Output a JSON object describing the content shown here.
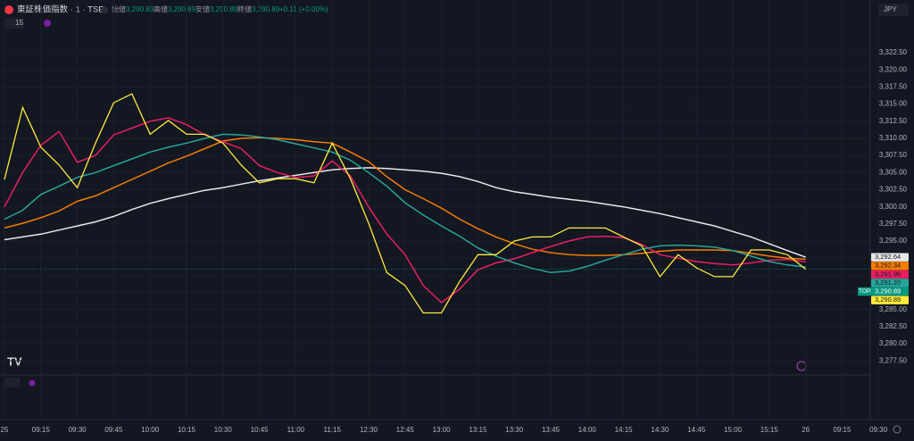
{
  "chart_data": {
    "type": "line",
    "title": "東証株価指数 · 1 · TSE",
    "ohlc": [
      [
        "始値",
        "3,290.89"
      ],
      [
        "高値",
        "3,290.89"
      ],
      [
        "安値",
        "3,290.89"
      ],
      [
        "終値",
        "3,290.89"
      ]
    ],
    "change": "+0.11 (+0.00%)",
    "interval": "15",
    "currency": "JPY",
    "categories": [
      "25",
      null,
      "09:15",
      null,
      "09:30",
      null,
      "09:45",
      null,
      "10:00",
      null,
      "10:15",
      null,
      "10:30",
      null,
      "10:45",
      null,
      "11:00",
      null,
      "11:15",
      null,
      "12:30",
      null,
      "12:45",
      null,
      "13:00",
      null,
      "13:15",
      null,
      "13:30",
      null,
      "13:45",
      null,
      "14:00",
      null,
      "14:15",
      null,
      "14:30",
      null,
      "14:45",
      null,
      "15:00",
      null,
      "15:15",
      null,
      "26",
      null,
      "09:15",
      null,
      "09:30"
    ],
    "ylim": [
      3275.7,
      3327.6
    ],
    "yticks": [
      {
        "value": 3277.5,
        "label": "3,277.50"
      },
      {
        "value": 3280,
        "label": "3,280.00"
      },
      {
        "value": 3282.5,
        "label": "3,282.50"
      },
      {
        "value": 3285,
        "label": "3,285.00"
      },
      {
        "value": 3287.5,
        "label": "3,287.50"
      },
      {
        "value": 3290,
        "label": "3,290.00"
      },
      {
        "value": 3292.5,
        "label": "3,292.50"
      },
      {
        "value": 3295,
        "label": "3,295.00"
      },
      {
        "value": 3297.5,
        "label": "3,297.50"
      },
      {
        "value": 3300,
        "label": "3,300.00"
      },
      {
        "value": 3302.5,
        "label": "3,302.50"
      },
      {
        "value": 3305,
        "label": "3,305.00"
      },
      {
        "value": 3307.5,
        "label": "3,307.50"
      },
      {
        "value": 3310,
        "label": "3,310.00"
      },
      {
        "value": 3312.5,
        "label": "3,312.50"
      },
      {
        "value": 3315,
        "label": "3,315.00"
      },
      {
        "value": 3317.5,
        "label": "3,317.50"
      },
      {
        "value": 3320,
        "label": "3,320.00"
      },
      {
        "value": 3322.5,
        "label": "3,322.50"
      }
    ],
    "grid": true,
    "series": [
      {
        "color": "#e8e8e8",
        "last_label": "3,292.64",
        "values": [
          3295.2,
          3295.6,
          3296,
          3296.6,
          3297.2,
          3297.8,
          3298.6,
          3299.6,
          3300.5,
          3301.2,
          3301.8,
          3302.4,
          3302.8,
          3303.3,
          3303.8,
          3304.2,
          3304.6,
          3305,
          3305.4,
          3305.6,
          3305.7,
          3305.6,
          3305.4,
          3305.2,
          3304.9,
          3304.4,
          3303.7,
          3302.8,
          3302.2,
          3301.8,
          3301.4,
          3301.1,
          3300.8,
          3300.4,
          3300,
          3299.5,
          3299,
          3298.4,
          3297.8,
          3297.2,
          3296.4,
          3295.6,
          3294.6,
          3293.6,
          3292.64,
          null,
          null,
          null,
          null
        ]
      },
      {
        "color": "#f57c00",
        "last_label": "3,292.34",
        "values": [
          3296.9,
          3297.6,
          3298.4,
          3299.4,
          3300.8,
          3301.6,
          3302.8,
          3304,
          3305.2,
          3306.4,
          3307.4,
          3308.5,
          3309.6,
          3310,
          3310.1,
          3310,
          3309.8,
          3309.5,
          3309.3,
          3308,
          3306.6,
          3304.4,
          3302.5,
          3301.2,
          3299.8,
          3298.2,
          3296.8,
          3295.6,
          3294.6,
          3293.8,
          3293.3,
          3293,
          3292.9,
          3292.9,
          3293,
          3293.2,
          3293.5,
          3293.7,
          3293.7,
          3293.7,
          3293.6,
          3293.2,
          3292.8,
          3292.5,
          3292.34,
          null,
          null,
          null,
          null
        ]
      },
      {
        "color": "#e91e63",
        "last_label": "3,291.96",
        "values": [
          3300,
          3305,
          3309,
          3311,
          3306.5,
          3307.5,
          3310.5,
          3311.5,
          3312.5,
          3313,
          3312,
          3310.5,
          3309.5,
          3308.5,
          3306,
          3305,
          3304.3,
          3304.5,
          3306.7,
          3304.5,
          3300,
          3296,
          3293,
          3288.5,
          3286,
          3288,
          3290.8,
          3291.8,
          3292.4,
          3293.3,
          3294.2,
          3295,
          3295.6,
          3295.7,
          3295.5,
          3294.5,
          3293,
          3292.5,
          3292,
          3291.7,
          3291.5,
          3291.8,
          3292.2,
          3292.3,
          3291.96,
          null,
          null,
          null,
          null
        ]
      },
      {
        "color": "#26a69a",
        "last_label": "3,291.20",
        "values": [
          3298.2,
          3299.5,
          3301.8,
          3303,
          3304.3,
          3305,
          3306,
          3307,
          3308,
          3308.7,
          3309.3,
          3310,
          3310.6,
          3310.5,
          3310.2,
          3309.8,
          3309.2,
          3308.6,
          3308,
          3306.8,
          3305,
          3303,
          3300.6,
          3298.8,
          3297.2,
          3295.7,
          3294,
          3292.8,
          3291.8,
          3291,
          3290.4,
          3290.6,
          3291.3,
          3292.2,
          3293,
          3293.8,
          3294.3,
          3294.4,
          3294.3,
          3294.1,
          3293.6,
          3292.8,
          3292,
          3291.5,
          3291.2,
          null,
          null,
          null,
          null
        ]
      },
      {
        "color": "#ffeb3b",
        "last_label": "3,290.89",
        "values": [
          3304,
          3314.5,
          3308.7,
          3306.1,
          3302.8,
          3309.3,
          3315.2,
          3316.5,
          3310.6,
          3312.6,
          3310.6,
          3310.6,
          3309.3,
          3306.1,
          3303.5,
          3304.1,
          3304.1,
          3303.5,
          3309.3,
          3304.1,
          3297.6,
          3290.4,
          3288.5,
          3284.5,
          3284.5,
          3289.1,
          3293,
          3293,
          3295,
          3295.6,
          3295.6,
          3296.9,
          3296.9,
          3296.9,
          3295.6,
          3294.3,
          3289.8,
          3293,
          3291.1,
          3289.8,
          3289.8,
          3293.7,
          3293.7,
          3293,
          3290.89,
          null,
          null,
          null,
          null
        ]
      }
    ],
    "price_tag": {
      "name": "TOPIX",
      "value": 3290.89,
      "label": "3,290.89",
      "color": "#089981"
    }
  }
}
